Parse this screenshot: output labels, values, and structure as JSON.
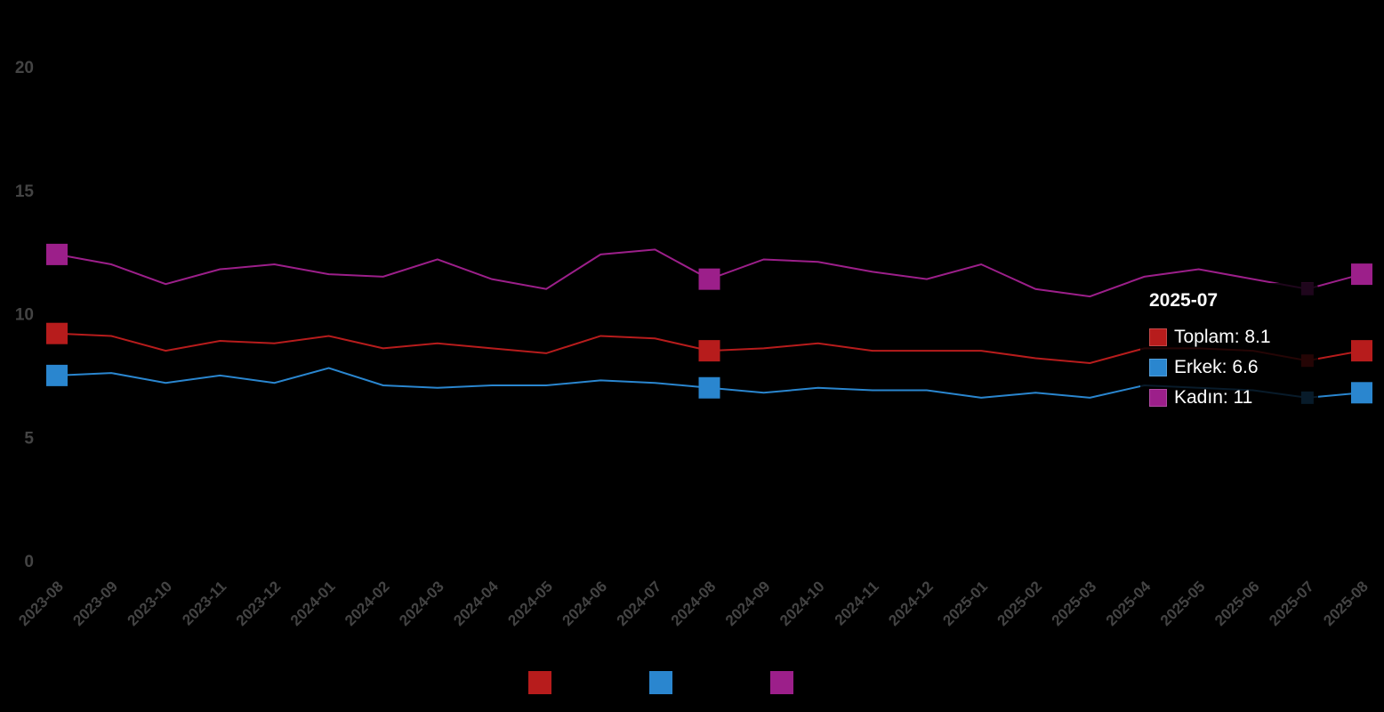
{
  "chart_data": {
    "type": "line",
    "title": "",
    "xlabel": "",
    "ylabel": "",
    "ylim": [
      0,
      20
    ],
    "yticks": [
      "0",
      "5",
      "10",
      "15",
      "20"
    ],
    "ytick_values": [
      0,
      5,
      10,
      15,
      20
    ],
    "categories": [
      "2023-08",
      "2023-09",
      "2023-10",
      "2023-11",
      "2023-12",
      "2024-01",
      "2024-02",
      "2024-03",
      "2024-04",
      "2024-05",
      "2024-06",
      "2024-07",
      "2024-08",
      "2024-09",
      "2024-10",
      "2024-11",
      "2024-12",
      "2025-01",
      "2025-02",
      "2025-03",
      "2025-04",
      "2025-05",
      "2025-06",
      "2025-07",
      "2025-08"
    ],
    "legend_position": "bottom",
    "series": [
      {
        "name": "Toplam",
        "color": "#b71c1c",
        "values": [
          9.2,
          9.1,
          8.5,
          8.9,
          8.8,
          9.1,
          8.6,
          8.8,
          8.6,
          8.4,
          9.1,
          9.0,
          8.5,
          8.6,
          8.8,
          8.5,
          8.5,
          8.5,
          8.2,
          8.0,
          8.6,
          8.6,
          8.5,
          8.1,
          8.5
        ]
      },
      {
        "name": "Erkek",
        "color": "#2a86cf",
        "values": [
          7.5,
          7.6,
          7.2,
          7.5,
          7.2,
          7.8,
          7.1,
          7.0,
          7.1,
          7.1,
          7.3,
          7.2,
          7.0,
          6.8,
          7.0,
          6.9,
          6.9,
          6.6,
          6.8,
          6.6,
          7.1,
          7.0,
          6.9,
          6.6,
          6.8
        ]
      },
      {
        "name": "Kadın",
        "color": "#9c1f8a",
        "values": [
          12.4,
          12.0,
          11.2,
          11.8,
          12.0,
          11.6,
          11.5,
          12.2,
          11.4,
          11.0,
          12.4,
          12.6,
          11.4,
          12.2,
          12.1,
          11.7,
          11.4,
          12.0,
          11.0,
          10.7,
          11.5,
          11.8,
          11.4,
          11.0,
          11.6
        ]
      }
    ],
    "tooltip": {
      "title": "2025-07",
      "rows": [
        "Toplam: 8.1",
        "Erkek: 6.6",
        "Kadın: 11"
      ]
    }
  }
}
